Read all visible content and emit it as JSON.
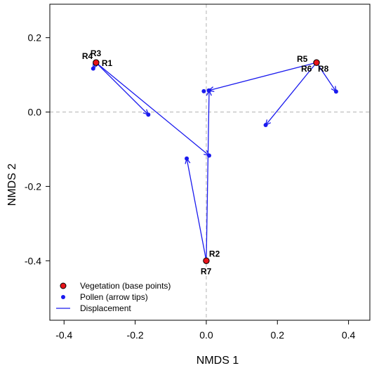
{
  "chart_data": {
    "type": "scatter",
    "title": "",
    "xlabel": "NMDS 1",
    "ylabel": "NMDS 2",
    "xlim": [
      -0.44,
      0.46
    ],
    "ylim": [
      -0.56,
      0.29
    ],
    "x_ticks": [
      -0.4,
      -0.2,
      0.0,
      0.2,
      0.4
    ],
    "x_tick_labels": [
      "-0.4",
      "-0.2",
      "0.0",
      "0.2",
      "0.4"
    ],
    "y_ticks": [
      -0.4,
      -0.2,
      0.0,
      0.2
    ],
    "y_tick_labels": [
      "-0.4",
      "-0.2",
      "0.0",
      "0.2"
    ],
    "reference_lines": {
      "x": 0,
      "y": 0,
      "style": "dashed",
      "color": "#bfbfbf"
    },
    "legend": {
      "placement": "bottom-left",
      "entries": [
        {
          "label": "Vegetation (base points)",
          "marker": "circle-red"
        },
        {
          "label": "Pollen (arrow tips)",
          "marker": "dot-blue"
        },
        {
          "label": "Displacement",
          "marker": "line-blue"
        }
      ]
    },
    "colors": {
      "vegetation_fill": "#e8141a",
      "pollen": "#1a1aee",
      "arrow": "#1a1aee",
      "reference": "#bfbfbf"
    },
    "points": [
      {
        "id": "R1",
        "veg_x": -0.31,
        "veg_y": 0.133,
        "pollen_x": -0.163,
        "pollen_y": -0.007
      },
      {
        "id": "R2",
        "veg_x": 0.0,
        "veg_y": -0.4,
        "pollen_x": 0.008,
        "pollen_y": 0.058
      },
      {
        "id": "R3",
        "veg_x": -0.31,
        "veg_y": 0.133,
        "pollen_x": 0.008,
        "pollen_y": -0.117
      },
      {
        "id": "R4",
        "veg_x": -0.31,
        "veg_y": 0.133,
        "pollen_x": -0.318,
        "pollen_y": 0.117
      },
      {
        "id": "R5",
        "veg_x": 0.31,
        "veg_y": 0.133,
        "pollen_x": 0.007,
        "pollen_y": 0.058
      },
      {
        "id": "R6",
        "veg_x": 0.31,
        "veg_y": 0.133,
        "pollen_x": 0.167,
        "pollen_y": -0.035
      },
      {
        "id": "R7",
        "veg_x": 0.0,
        "veg_y": -0.4,
        "pollen_x": -0.055,
        "pollen_y": -0.125
      },
      {
        "id": "R8",
        "veg_x": 0.31,
        "veg_y": 0.133,
        "pollen_x": 0.365,
        "pollen_y": 0.055
      }
    ],
    "extra_pollen_points": [
      {
        "x": -0.007,
        "y": 0.056
      }
    ],
    "vegetation_labels": [
      {
        "text": "R4",
        "x": -0.31,
        "y": 0.133,
        "anchor": "upper-left"
      },
      {
        "text": "R3",
        "x": -0.31,
        "y": 0.133,
        "anchor": "above"
      },
      {
        "text": "R1",
        "x": -0.31,
        "y": 0.133,
        "anchor": "right"
      },
      {
        "text": "R5",
        "x": 0.31,
        "y": 0.133,
        "anchor": "left"
      },
      {
        "text": "R6",
        "x": 0.31,
        "y": 0.133,
        "anchor": "below-left"
      },
      {
        "text": "R8",
        "x": 0.31,
        "y": 0.133,
        "anchor": "below-right"
      },
      {
        "text": "R2",
        "x": 0.0,
        "y": -0.4,
        "anchor": "upper-right"
      },
      {
        "text": "R7",
        "x": 0.0,
        "y": -0.4,
        "anchor": "below"
      }
    ]
  }
}
